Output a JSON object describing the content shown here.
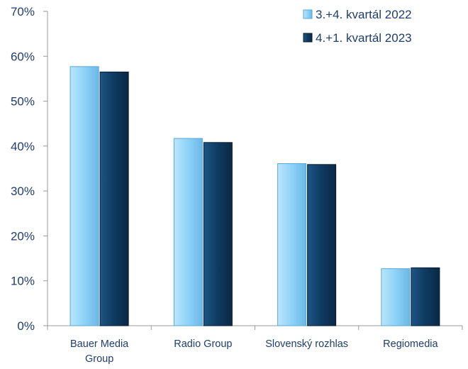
{
  "chart_data": {
    "type": "bar",
    "categories": [
      [
        "Bauer Media",
        "Group"
      ],
      [
        "Radio Group"
      ],
      [
        "Slovenský rozhlas"
      ],
      [
        "Regiomedia"
      ]
    ],
    "series": [
      {
        "name": "3.+4. kvartál 2022",
        "values": [
          0.577,
          0.417,
          0.361,
          0.127
        ],
        "color": "#8ed2f7"
      },
      {
        "name": "4.+1. kvartál 2023",
        "values": [
          0.565,
          0.408,
          0.359,
          0.129
        ],
        "color": "#0f3a60"
      }
    ],
    "ylim": [
      0,
      0.7
    ],
    "yticks": [
      "0%",
      "10%",
      "20%",
      "30%",
      "40%",
      "50%",
      "60%",
      "70%"
    ],
    "legend_position": "top-right",
    "grid": false
  }
}
